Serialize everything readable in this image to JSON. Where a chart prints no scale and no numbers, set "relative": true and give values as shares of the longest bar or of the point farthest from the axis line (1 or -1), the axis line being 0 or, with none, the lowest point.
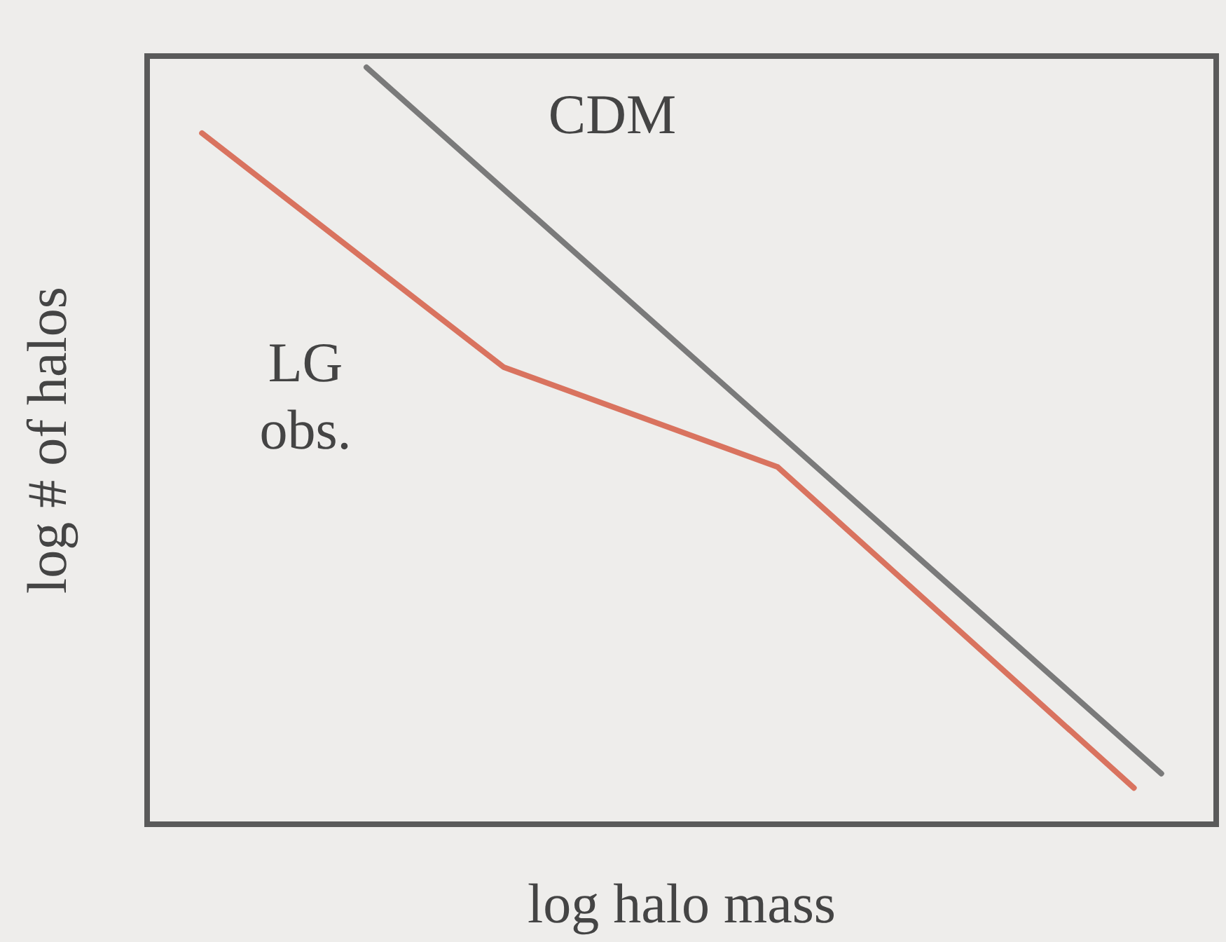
{
  "chart_data": {
    "type": "line",
    "relative": true,
    "xlabel": "log halo mass",
    "ylabel": "log # of halos",
    "categories": [
      null,
      null,
      null,
      null,
      null,
      null,
      null,
      null,
      null,
      null,
      null,
      null,
      null,
      null,
      null,
      null,
      null,
      null,
      null,
      null,
      null,
      null,
      null,
      null,
      null,
      null,
      null,
      null,
      null,
      null,
      null,
      null,
      null,
      null,
      null,
      null,
      null,
      null,
      null,
      null
    ],
    "series": [
      {
        "name": "CDM",
        "color": "#7a7a7a",
        "values": [
          null,
          null,
          null,
          null,
          null,
          null,
          null,
          null,
          1,
          null,
          null,
          null,
          null,
          null,
          null,
          null,
          null,
          null,
          null,
          null,
          null,
          null,
          null,
          null,
          null,
          null,
          null,
          null,
          null,
          null,
          null,
          null,
          null,
          null,
          null,
          null,
          null,
          0.067,
          null,
          null
        ]
      },
      {
        "name": "LG obs.",
        "color": "#d9735f",
        "values": [
          null,
          null,
          0.913,
          null,
          null,
          null,
          null,
          null,
          null,
          null,
          null,
          null,
          null,
          0.604,
          null,
          null,
          null,
          null,
          null,
          null,
          null,
          null,
          null,
          0.472,
          null,
          null,
          null,
          null,
          null,
          null,
          null,
          null,
          null,
          null,
          null,
          null,
          0.048,
          null,
          null,
          null
        ]
      }
    ]
  }
}
